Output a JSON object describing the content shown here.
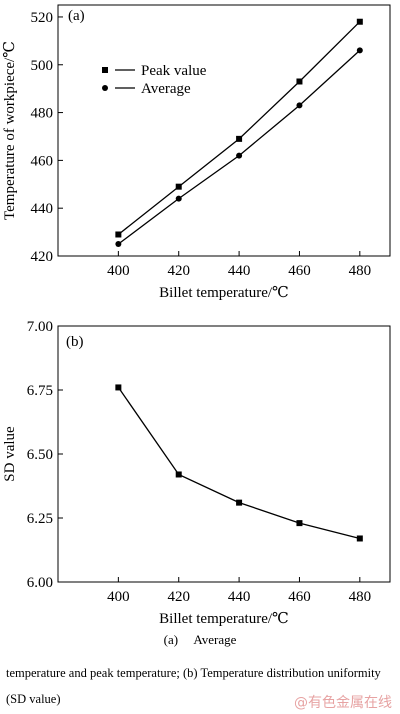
{
  "chart_data": [
    {
      "type": "line",
      "panel_label": "(a)",
      "xlabel": "Billet temperature/℃",
      "ylabel": "Temperature of workpiece/℃",
      "xlim": [
        380,
        490
      ],
      "ylim": [
        420,
        525
      ],
      "xticks": [
        400,
        420,
        440,
        460,
        480
      ],
      "yticks": [
        420,
        440,
        460,
        480,
        500,
        520
      ],
      "legend_position": "upper-left",
      "series": [
        {
          "name": "Peak value",
          "marker": "square",
          "x": [
            400,
            420,
            440,
            460,
            480
          ],
          "values": [
            429,
            449,
            469,
            493,
            518
          ]
        },
        {
          "name": "Average",
          "marker": "circle",
          "x": [
            400,
            420,
            440,
            460,
            480
          ],
          "values": [
            425,
            444,
            462,
            483,
            506
          ]
        }
      ]
    },
    {
      "type": "line",
      "panel_label": "(b)",
      "xlabel": "Billet temperature/℃",
      "ylabel": "SD value",
      "xlim": [
        380,
        490
      ],
      "ylim": [
        6.0,
        7.0
      ],
      "xticks": [
        400,
        420,
        440,
        460,
        480
      ],
      "yticks": [
        "6.00",
        "6.25",
        "6.50",
        "6.75",
        "7.00"
      ],
      "series": [
        {
          "marker": "square",
          "x": [
            400,
            420,
            440,
            460,
            480
          ],
          "values": [
            6.76,
            6.42,
            6.31,
            6.23,
            6.17
          ]
        }
      ]
    }
  ],
  "caption": {
    "part_a_letter": "(a)",
    "part_a_text": "Average",
    "rest": "temperature and peak temperature; (b) Temperature distribution uniformity (SD value)"
  },
  "watermark": "@有色金属在线"
}
